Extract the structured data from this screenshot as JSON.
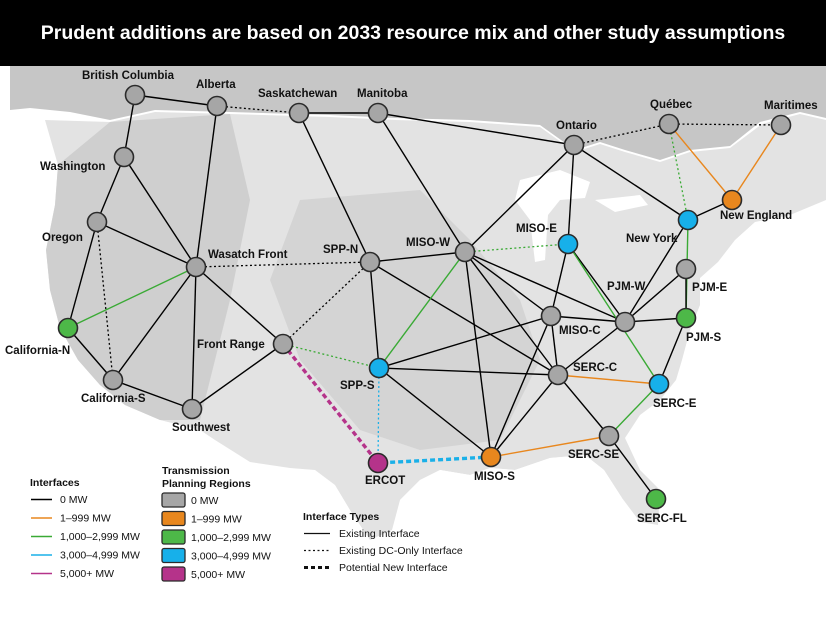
{
  "title": "Prudent additions are based on 2033 resource mix and other study assumptions",
  "colors": {
    "zero": "#000000",
    "c1": "#e8871e",
    "c2": "#3aaa35",
    "c3": "#1ab0e8",
    "c4": "#b5338a",
    "node_gray": "#a6a6a6",
    "node_orange": "#e8871e",
    "node_green": "#4db848",
    "node_blue": "#17b0ea",
    "node_magenta": "#b5338a"
  },
  "nodes": {
    "bc": {
      "label": "British Columbia",
      "color": "node_gray"
    },
    "alberta": {
      "label": "Alberta",
      "color": "node_gray"
    },
    "sask": {
      "label": "Saskatchewan",
      "color": "node_gray"
    },
    "manitoba": {
      "label": "Manitoba",
      "color": "node_gray"
    },
    "ontario": {
      "label": "Ontario",
      "color": "node_gray"
    },
    "quebec": {
      "label": "Québec",
      "color": "node_gray"
    },
    "maritimes": {
      "label": "Maritimes",
      "color": "node_gray"
    },
    "washington": {
      "label": "Washington",
      "color": "node_gray"
    },
    "oregon": {
      "label": "Oregon",
      "color": "node_gray"
    },
    "wasatch": {
      "label": "Wasatch Front",
      "color": "node_gray"
    },
    "sppn": {
      "label": "SPP-N",
      "color": "node_gray"
    },
    "misow": {
      "label": "MISO-W",
      "color": "node_gray"
    },
    "misoe": {
      "label": "MISO-E",
      "color": "node_blue"
    },
    "newyork": {
      "label": "New York",
      "color": "node_blue"
    },
    "newengland": {
      "label": "New England",
      "color": "node_orange"
    },
    "pjme": {
      "label": "PJM-E",
      "color": "node_gray"
    },
    "pjmw": {
      "label": "PJM-W",
      "color": "node_gray"
    },
    "pjms": {
      "label": "PJM-S",
      "color": "node_green"
    },
    "misoc": {
      "label": "MISO-C",
      "color": "node_gray"
    },
    "calin": {
      "label": "California-N",
      "color": "node_green"
    },
    "frontrange": {
      "label": "Front Range",
      "color": "node_gray"
    },
    "spps": {
      "label": "SPP-S",
      "color": "node_blue"
    },
    "sercc": {
      "label": "SERC-C",
      "color": "node_gray"
    },
    "serce": {
      "label": "SERC-E",
      "color": "node_blue"
    },
    "calis": {
      "label": "California-S",
      "color": "node_gray"
    },
    "southwest": {
      "label": "Southwest",
      "color": "node_gray"
    },
    "serse": {
      "label": "SERC-SE",
      "color": "node_gray"
    },
    "ercot": {
      "label": "ERCOT",
      "color": "node_magenta"
    },
    "misos": {
      "label": "MISO-S",
      "color": "node_orange"
    },
    "sercfl": {
      "label": "SERC-FL",
      "color": "node_green"
    }
  },
  "links": [
    {
      "a": "bc",
      "b": "alberta",
      "cap": "zero",
      "style": "existing"
    },
    {
      "a": "bc",
      "b": "washington",
      "cap": "zero",
      "style": "existing"
    },
    {
      "a": "alberta",
      "b": "wasatch",
      "cap": "zero",
      "style": "existing"
    },
    {
      "a": "alberta",
      "b": "sask",
      "cap": "zero",
      "style": "dc"
    },
    {
      "a": "sask",
      "b": "manitoba",
      "cap": "zero",
      "style": "existing"
    },
    {
      "a": "sask",
      "b": "sppn",
      "cap": "zero",
      "style": "existing"
    },
    {
      "a": "manitoba",
      "b": "ontario",
      "cap": "zero",
      "style": "existing"
    },
    {
      "a": "manitoba",
      "b": "misow",
      "cap": "zero",
      "style": "existing"
    },
    {
      "a": "ontario",
      "b": "quebec",
      "cap": "zero",
      "style": "dc"
    },
    {
      "a": "ontario",
      "b": "misow",
      "cap": "zero",
      "style": "existing"
    },
    {
      "a": "ontario",
      "b": "misoe",
      "cap": "zero",
      "style": "existing"
    },
    {
      "a": "ontario",
      "b": "newyork",
      "cap": "zero",
      "style": "existing"
    },
    {
      "a": "quebec",
      "b": "maritimes",
      "cap": "zero",
      "style": "dc"
    },
    {
      "a": "quebec",
      "b": "newengland",
      "cap": "c1",
      "style": "existing"
    },
    {
      "a": "quebec",
      "b": "newyork",
      "cap": "c2",
      "style": "dc"
    },
    {
      "a": "maritimes",
      "b": "newengland",
      "cap": "c1",
      "style": "existing"
    },
    {
      "a": "washington",
      "b": "oregon",
      "cap": "zero",
      "style": "existing"
    },
    {
      "a": "washington",
      "b": "wasatch",
      "cap": "zero",
      "style": "existing"
    },
    {
      "a": "oregon",
      "b": "calin",
      "cap": "zero",
      "style": "existing"
    },
    {
      "a": "oregon",
      "b": "calis",
      "cap": "zero",
      "style": "dc"
    },
    {
      "a": "oregon",
      "b": "wasatch",
      "cap": "zero",
      "style": "existing"
    },
    {
      "a": "calin",
      "b": "wasatch",
      "cap": "c2",
      "style": "existing"
    },
    {
      "a": "calin",
      "b": "calis",
      "cap": "zero",
      "style": "existing"
    },
    {
      "a": "calis",
      "b": "wasatch",
      "cap": "zero",
      "style": "existing"
    },
    {
      "a": "calis",
      "b": "southwest",
      "cap": "zero",
      "style": "existing"
    },
    {
      "a": "wasatch",
      "b": "southwest",
      "cap": "zero",
      "style": "existing"
    },
    {
      "a": "wasatch",
      "b": "frontrange",
      "cap": "zero",
      "style": "existing"
    },
    {
      "a": "wasatch",
      "b": "sppn",
      "cap": "zero",
      "style": "dc"
    },
    {
      "a": "southwest",
      "b": "frontrange",
      "cap": "zero",
      "style": "existing"
    },
    {
      "a": "frontrange",
      "b": "sppn",
      "cap": "zero",
      "style": "dc"
    },
    {
      "a": "frontrange",
      "b": "spps",
      "cap": "c2",
      "style": "dc"
    },
    {
      "a": "frontrange",
      "b": "ercot",
      "cap": "c4",
      "style": "new"
    },
    {
      "a": "sppn",
      "b": "misow",
      "cap": "zero",
      "style": "existing"
    },
    {
      "a": "sppn",
      "b": "spps",
      "cap": "zero",
      "style": "existing"
    },
    {
      "a": "sppn",
      "b": "sercc",
      "cap": "zero",
      "style": "existing"
    },
    {
      "a": "misow",
      "b": "misoe",
      "cap": "c2",
      "style": "dc"
    },
    {
      "a": "misow",
      "b": "spps",
      "cap": "c2",
      "style": "existing"
    },
    {
      "a": "misow",
      "b": "misoc",
      "cap": "zero",
      "style": "existing"
    },
    {
      "a": "misow",
      "b": "pjmw",
      "cap": "zero",
      "style": "existing"
    },
    {
      "a": "misow",
      "b": "sercc",
      "cap": "zero",
      "style": "existing"
    },
    {
      "a": "misow",
      "b": "misos",
      "cap": "zero",
      "style": "existing"
    },
    {
      "a": "misoe",
      "b": "misoc",
      "cap": "zero",
      "style": "existing"
    },
    {
      "a": "misoe",
      "b": "pjmw",
      "cap": "zero",
      "style": "existing"
    },
    {
      "a": "misoe",
      "b": "serce",
      "cap": "c2",
      "style": "existing"
    },
    {
      "a": "newyork",
      "b": "newengland",
      "cap": "zero",
      "style": "existing"
    },
    {
      "a": "newyork",
      "b": "pjmw",
      "cap": "zero",
      "style": "existing"
    },
    {
      "a": "newyork",
      "b": "pjms",
      "cap": "c2",
      "style": "existing"
    },
    {
      "a": "pjme",
      "b": "pjmw",
      "cap": "zero",
      "style": "existing"
    },
    {
      "a": "pjme",
      "b": "pjms",
      "cap": "zero",
      "style": "existing"
    },
    {
      "a": "pjmw",
      "b": "pjms",
      "cap": "zero",
      "style": "existing"
    },
    {
      "a": "pjmw",
      "b": "misoc",
      "cap": "zero",
      "style": "existing"
    },
    {
      "a": "pjmw",
      "b": "sercc",
      "cap": "zero",
      "style": "existing"
    },
    {
      "a": "pjms",
      "b": "serce",
      "cap": "zero",
      "style": "existing"
    },
    {
      "a": "misoc",
      "b": "spps",
      "cap": "zero",
      "style": "existing"
    },
    {
      "a": "misoc",
      "b": "sercc",
      "cap": "zero",
      "style": "existing"
    },
    {
      "a": "misoc",
      "b": "misos",
      "cap": "zero",
      "style": "existing"
    },
    {
      "a": "spps",
      "b": "sercc",
      "cap": "zero",
      "style": "existing"
    },
    {
      "a": "spps",
      "b": "misos",
      "cap": "zero",
      "style": "existing"
    },
    {
      "a": "spps",
      "b": "ercot",
      "cap": "c3",
      "style": "dc"
    },
    {
      "a": "sercc",
      "b": "serce",
      "cap": "c1",
      "style": "existing"
    },
    {
      "a": "sercc",
      "b": "serse",
      "cap": "zero",
      "style": "existing"
    },
    {
      "a": "sercc",
      "b": "misos",
      "cap": "zero",
      "style": "existing"
    },
    {
      "a": "serce",
      "b": "serse",
      "cap": "c2",
      "style": "existing"
    },
    {
      "a": "serse",
      "b": "misos",
      "cap": "c1",
      "style": "existing"
    },
    {
      "a": "serse",
      "b": "sercfl",
      "cap": "zero",
      "style": "existing"
    },
    {
      "a": "misos",
      "b": "ercot",
      "cap": "c3",
      "style": "new"
    }
  ],
  "legend": {
    "interfaces": {
      "title": "Interfaces",
      "items": [
        {
          "label": "0 MW",
          "cap": "zero"
        },
        {
          "label": "1–999 MW",
          "cap": "c1"
        },
        {
          "label": "1,000–2,999 MW",
          "cap": "c2"
        },
        {
          "label": "3,000–4,999 MW",
          "cap": "c3"
        },
        {
          "label": "5,000+ MW",
          "cap": "c4"
        }
      ]
    },
    "regions": {
      "title_line1": "Transmission",
      "title_line2": "Planning Regions",
      "items": [
        {
          "label": "0 MW",
          "color": "node_gray"
        },
        {
          "label": "1–999 MW",
          "color": "node_orange"
        },
        {
          "label": "1,000–2,999 MW",
          "color": "node_green"
        },
        {
          "label": "3,000–4,999 MW",
          "color": "node_blue"
        },
        {
          "label": "5,000+ MW",
          "color": "node_magenta"
        }
      ]
    },
    "types": {
      "title": "Interface Types",
      "items": [
        {
          "label": "Existing Interface",
          "style": "existing"
        },
        {
          "label": "Existing DC-Only Interface",
          "style": "dc"
        },
        {
          "label": "Potential New Interface",
          "style": "new"
        }
      ]
    }
  }
}
